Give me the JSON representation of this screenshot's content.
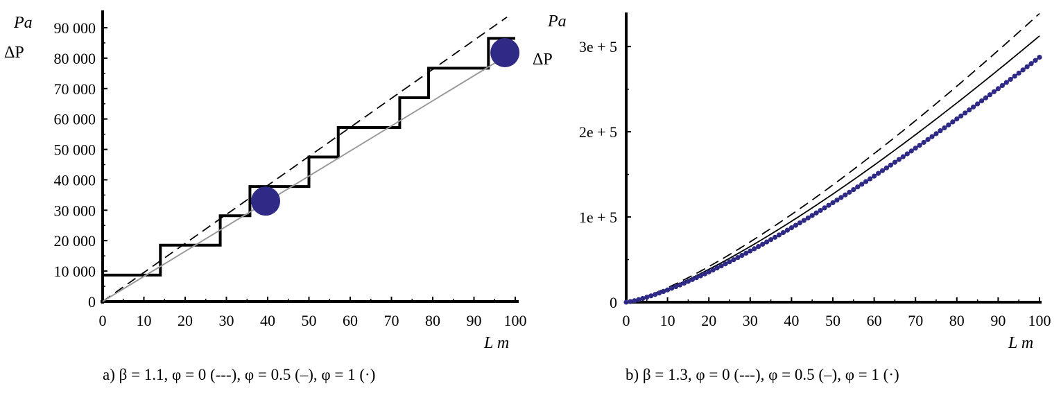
{
  "chart_data": [
    {
      "type": "line",
      "caption": "a) β = 1.1, φ = 0 (---), φ = 0.5 (–), φ = 1 (·)",
      "ylabel_unit": "Pa",
      "ylabel": "ΔP",
      "xlabel": "L m",
      "xlim": [
        0,
        100
      ],
      "ylim": [
        0,
        90000
      ],
      "xticks": [
        "0",
        "10",
        "20",
        "30",
        "40",
        "50",
        "60",
        "70",
        "80",
        "90",
        "100"
      ],
      "yticks": [
        "0",
        "10 000",
        "20 000",
        "30 000",
        "40 000",
        "50 000",
        "60 000",
        "70 000",
        "80 000",
        "90 000"
      ],
      "series": [
        {
          "style": "dashed",
          "x": [
            0,
            98
          ],
          "y": [
            0,
            93500
          ]
        },
        {
          "style": "solid-thick-step",
          "x": [
            0,
            0,
            14,
            14,
            28.5,
            28.5,
            35.7,
            35.7,
            50,
            50,
            57.1,
            57.1,
            72,
            72,
            79,
            79,
            93.5,
            93.5,
            100
          ],
          "y": [
            0,
            8700,
            8700,
            18500,
            18500,
            28200,
            28200,
            37800,
            37800,
            47500,
            47500,
            57200,
            57200,
            67000,
            67000,
            76700,
            76700,
            86500,
            86500
          ]
        },
        {
          "style": "solid-thin-gray",
          "x": [
            0,
            97
          ],
          "y": [
            0,
            80000
          ]
        },
        {
          "style": "points",
          "x": [
            39.5,
            97.5
          ],
          "y": [
            33000,
            81800
          ]
        }
      ]
    },
    {
      "type": "line",
      "caption": "b) β = 1.3, φ = 0 (---), φ = 0.5 (–), φ = 1 (·)",
      "ylabel_unit": "Pa",
      "ylabel": "ΔP",
      "xlabel": "L m",
      "xlim": [
        0,
        100
      ],
      "ylim": [
        0,
        340000
      ],
      "xticks": [
        "0",
        "10",
        "20",
        "30",
        "40",
        "50",
        "60",
        "70",
        "80",
        "90",
        "100"
      ],
      "yticks": [
        "0",
        "1e + 5",
        "2e + 5",
        "3e + 5"
      ],
      "series": [
        {
          "style": "dashed",
          "power_law": {
            "coefficient": 851,
            "exponent": 1.3
          }
        },
        {
          "style": "solid",
          "power_law": {
            "coefficient": 785,
            "exponent": 1.3
          }
        },
        {
          "style": "dotted",
          "power_law": {
            "coefficient": 722,
            "exponent": 1.3
          }
        }
      ]
    }
  ],
  "colors": {
    "axis": "#000000",
    "points": "#2e2a85",
    "gray_line": "#9a9a9a"
  }
}
